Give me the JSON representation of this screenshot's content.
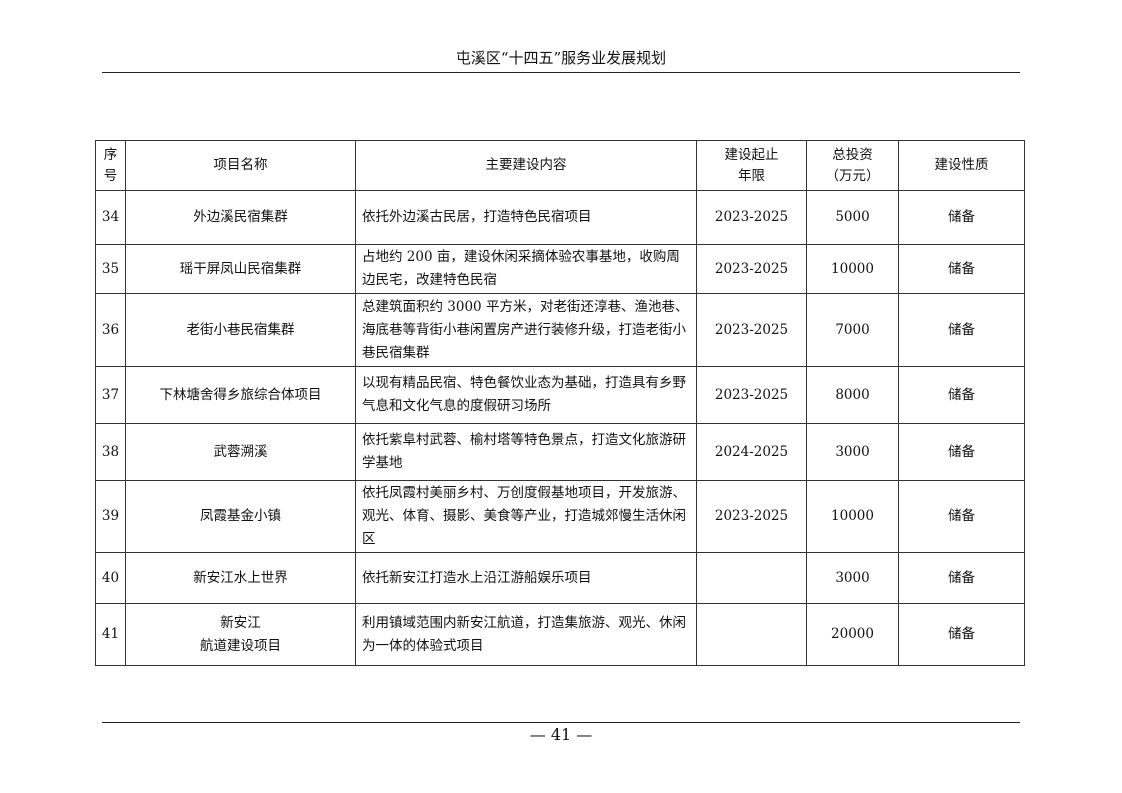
{
  "header": {
    "title": "屯溪区“十四五”服务业发展规划"
  },
  "table": {
    "columns": [
      "序号",
      "项目名称",
      "主要建设内容",
      "建设起止年限",
      "总投资（万元）",
      "建设性质"
    ],
    "column_lines": [
      [
        "序",
        "号"
      ],
      [
        "项目名称"
      ],
      [
        "主要建设内容"
      ],
      [
        "建设起止",
        "年限"
      ],
      [
        "总投资",
        "（万元）"
      ],
      [
        "建设性质"
      ]
    ],
    "rows": [
      {
        "no": "34",
        "name": [
          "外边溪民宿集群"
        ],
        "content": "依托外边溪古民居，打造特色民宿项目",
        "years": "2023-2025",
        "investment": "5000",
        "nature": "储备"
      },
      {
        "no": "35",
        "name": [
          "瑶干屏凤山民宿集群"
        ],
        "content": "占地约 200 亩，建设休闲采摘体验农事基地，收购周边民宅，改建特色民宿",
        "years": "2023-2025",
        "investment": "10000",
        "nature": "储备"
      },
      {
        "no": "36",
        "name": [
          "老街小巷民宿集群"
        ],
        "content": "总建筑面积约 3000 平方米，对老街还淳巷、渔池巷、海底巷等背街小巷闲置房产进行装修升级，打造老街小巷民宿集群",
        "years": "2023-2025",
        "investment": "7000",
        "nature": "储备"
      },
      {
        "no": "37",
        "name": [
          "下林塘舍得乡旅综合体项目"
        ],
        "content": "以现有精品民宿、特色餐饮业态为基础，打造具有乡野气息和文化气息的度假研习场所",
        "years": "2023-2025",
        "investment": "8000",
        "nature": "储备"
      },
      {
        "no": "38",
        "name": [
          "武蓉溯溪"
        ],
        "content": "依托紫阜村武蓉、榆村塔等特色景点，打造文化旅游研学基地",
        "years": "2024-2025",
        "investment": "3000",
        "nature": "储备"
      },
      {
        "no": "39",
        "name": [
          "凤霞基金小镇"
        ],
        "content": "依托凤霞村美丽乡村、万创度假基地项目，开发旅游、观光、体育、摄影、美食等产业，打造城郊慢生活休闲区",
        "years": "2023-2025",
        "investment": "10000",
        "nature": "储备"
      },
      {
        "no": "40",
        "name": [
          "新安江水上世界"
        ],
        "content": "依托新安江打造水上沿江游船娱乐项目",
        "years": "",
        "investment": "3000",
        "nature": "储备"
      },
      {
        "no": "41",
        "name": [
          "新安江",
          "航道建设项目"
        ],
        "content": "利用镇域范围内新安江航道，打造集旅游、观光、休闲为一体的体验式项目",
        "years": "",
        "investment": "20000",
        "nature": "储备"
      }
    ]
  },
  "footer": {
    "page_number": "— 41 —"
  }
}
